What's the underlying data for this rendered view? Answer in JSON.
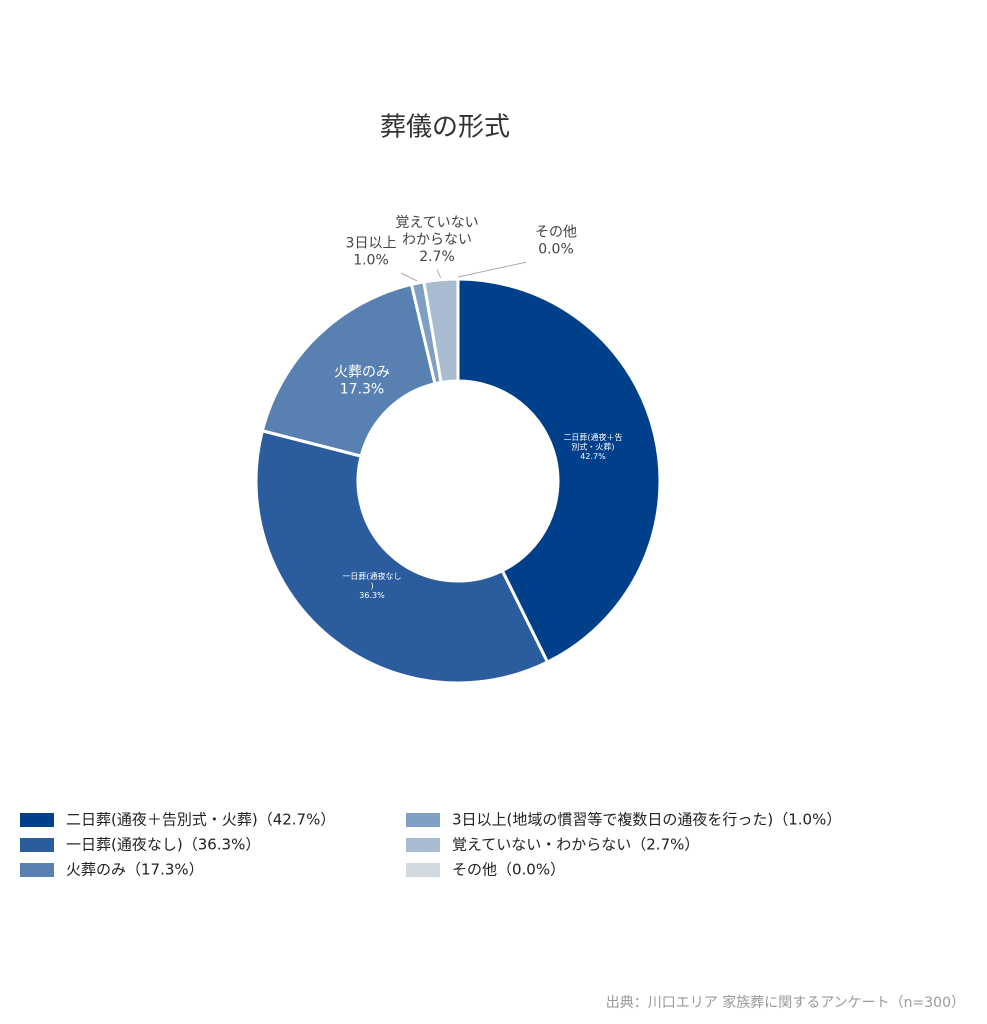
{
  "chart_data": {
    "type": "donut",
    "title": "葬儀の形式",
    "categories": [
      "二日葬(通夜＋告別式・火葬)（42.7%）",
      "一日葬(通夜なし)（36.3%）",
      "火葬のみ（17.3%）",
      "3日以上(地域の慣習等で複数日の通夜を行った)（1.0%）",
      "覚えていない・わからない（2.7%）",
      "その他（0.0%）"
    ],
    "slice_labels": [
      [
        "二日葬(通夜＋告",
        "別式・火葬)"
      ],
      [
        "一日葬(通夜なし",
        ")"
      ],
      [
        "火葬のみ"
      ],
      [
        "3日以上"
      ],
      [
        "覚えていない",
        "わからない"
      ],
      [
        "その他"
      ]
    ],
    "values": [
      42.7,
      36.3,
      17.3,
      1.0,
      2.7,
      0.0
    ],
    "value_labels": [
      "42.7%",
      "36.3%",
      "17.3%",
      "1.0%",
      "2.7%",
      "0.0%"
    ],
    "colors": [
      "#003f8a",
      "#2b5c9e",
      "#5880b0",
      "#7f9fc3",
      "#a9bbd1",
      "#d2d9df"
    ],
    "source": "出典：川口エリア 家族葬に関するアンケート（n=300）"
  }
}
